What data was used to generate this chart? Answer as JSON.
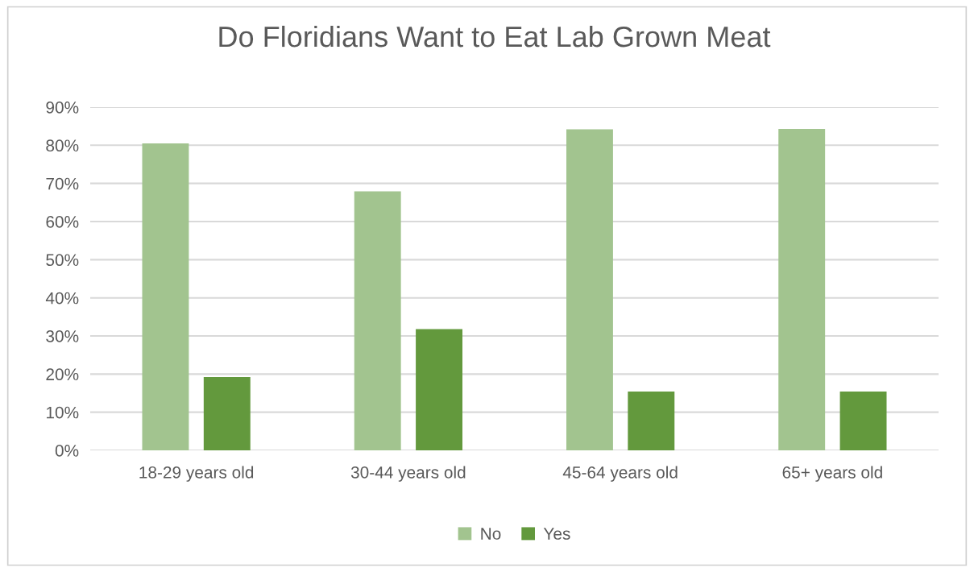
{
  "chart_data": {
    "type": "bar",
    "title": "Do Floridians Want to Eat Lab Grown Meat",
    "categories": [
      "18-29 years old",
      "30-44 years old",
      "45-64 years old",
      "65+ years old"
    ],
    "series": [
      {
        "name": "No",
        "color": "#a2c48f",
        "values": [
          80.5,
          67.9,
          84.2,
          84.3
        ]
      },
      {
        "name": "Yes",
        "color": "#63993d",
        "values": [
          19.2,
          31.8,
          15.4,
          15.4
        ]
      }
    ],
    "ylim": [
      0,
      90
    ],
    "yticks": [
      {
        "value": 0,
        "label": "0%"
      },
      {
        "value": 10,
        "label": "10%"
      },
      {
        "value": 20,
        "label": "20%"
      },
      {
        "value": 30,
        "label": "30%"
      },
      {
        "value": 40,
        "label": "40%"
      },
      {
        "value": 50,
        "label": "50%"
      },
      {
        "value": 60,
        "label": "60%"
      },
      {
        "value": 70,
        "label": "70%"
      },
      {
        "value": 80,
        "label": "80%"
      },
      {
        "value": 90,
        "label": "90%"
      }
    ],
    "grid": "y",
    "legend": "bottom"
  }
}
